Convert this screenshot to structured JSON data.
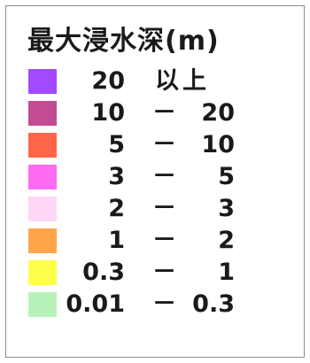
{
  "legend": {
    "title": "最大浸水深(m)",
    "rows": [
      {
        "lower": "20",
        "separator": "",
        "upper": "以上",
        "color": "#a349ff"
      },
      {
        "lower": "10",
        "separator": "－",
        "upper": "20",
        "color": "#c24c93"
      },
      {
        "lower": "5",
        "separator": "－",
        "upper": "10",
        "color": "#ff6549"
      },
      {
        "lower": "3",
        "separator": "－",
        "upper": "5",
        "color": "#ff6bf2"
      },
      {
        "lower": "2",
        "separator": "－",
        "upper": "3",
        "color": "#ffd6f5"
      },
      {
        "lower": "1",
        "separator": "－",
        "upper": "2",
        "color": "#ffa64d"
      },
      {
        "lower": "0.3",
        "separator": "－",
        "upper": "1",
        "color": "#ffff4d"
      },
      {
        "lower": "0.01",
        "separator": "－",
        "upper": "0.3",
        "color": "#b9f2b9"
      }
    ]
  }
}
